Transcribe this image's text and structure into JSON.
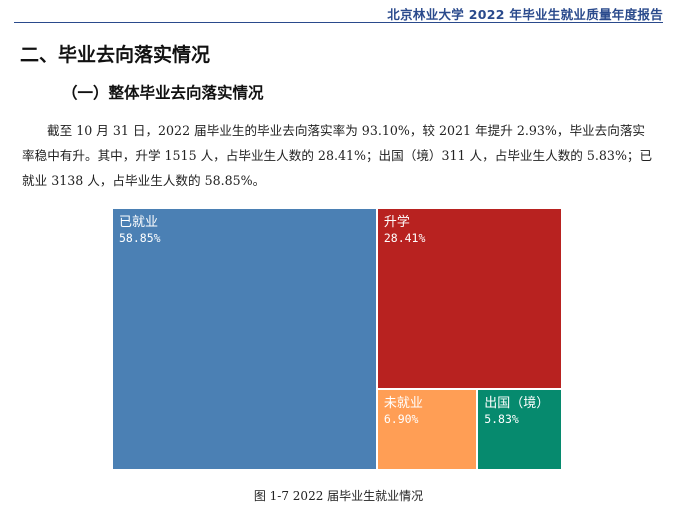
{
  "header": {
    "title": "北京林业大学 2022 年毕业生就业质量年度报告"
  },
  "section": {
    "title": "二、毕业去向落实情况"
  },
  "subsection": {
    "title": "（一）整体毕业去向落实情况"
  },
  "paragraph": "截至 10 月 31 日，2022 届毕业生的毕业去向落实率为 93.10%，较 2021 年提升 2.93%，毕业去向落实率稳中有升。其中，升学 1515 人，占毕业生人数的 28.41%；出国（境）311 人，占毕业生人数的 5.83%；已就业 3138 人，占毕业生人数的 58.85%。",
  "chart_data": {
    "type": "treemap",
    "title": "",
    "items": [
      {
        "name": "已就业",
        "value": 58.85,
        "label": "58.85%",
        "color": "#4b80b4"
      },
      {
        "name": "升学",
        "value": 28.41,
        "label": "28.41%",
        "color": "#b82220"
      },
      {
        "name": "未就业",
        "value": 6.9,
        "label": "6.90%",
        "color": "#ff9e55"
      },
      {
        "name": "出国（境）",
        "value": 5.83,
        "label": "5.83%",
        "color": "#068a6e"
      }
    ]
  },
  "caption": "图 1-7   2022 届毕业生就业情况"
}
